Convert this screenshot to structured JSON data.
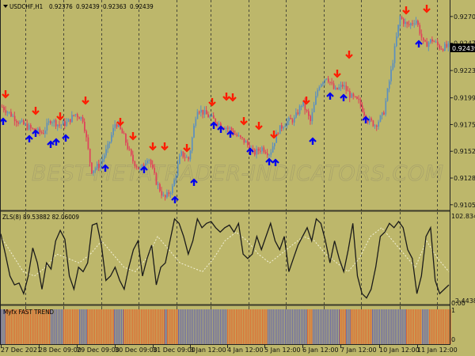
{
  "window": {
    "symbol_title": "USDCHF,H1",
    "ohlc": [
      "0.92376",
      "0.92439",
      "0.92363",
      "0.92439"
    ],
    "current_price_label": "0.92439",
    "watermark": "BEST-METATRADER-INDICATORS.COM"
  },
  "colors": {
    "background": "#bdb76b",
    "grid": "#4a4a3a",
    "bull_candle": "#5b8fbf",
    "bear_candle": "#e0405a",
    "up_arrow": "#0000ee",
    "down_arrow": "#ff1a00",
    "zls_main": "#1a1a1a",
    "zls_signal": "#f0f0d8",
    "trend_up": "#e06a30",
    "trend_down": "#6a6aaa",
    "price_tag_bg": "#000000",
    "price_tag_fg": "#ffffff"
  },
  "panels": {
    "main": {
      "y_ticks": [
        "0.92705",
        "0.92470",
        "0.92230",
        "0.91990",
        "0.91755",
        "0.91520",
        "0.91285",
        "0.91050"
      ]
    },
    "zls": {
      "title": "ZLS(8) 89.53882 82.06009",
      "y_max": "102.83414",
      "y_min": "-2.4438"
    },
    "trend": {
      "title": "Myfx FAST TREND",
      "y_top": "1",
      "y_bottom": "0",
      "y_overlap": "0.00"
    }
  },
  "x_axis": {
    "labels": [
      "27 Dec 2021",
      "28 Dec 09:00",
      "29 Dec 09:00",
      "30 Dec 09:00",
      "31 Dec 09:00",
      "3 Jan 12:00",
      "4 Jan 12:00",
      "5 Jan 12:00",
      "6 Jan 12:00",
      "7 Jan 12:00",
      "10 Jan 12:00",
      "11 Jan 12:00"
    ]
  },
  "chart_data": [
    {
      "type": "candlestick",
      "title": "USDCHF,H1 0.92376 0.92439 0.92363 0.92439",
      "ylim": [
        0.91,
        0.9285
      ],
      "y_ticks": [
        0.92705,
        0.9247,
        0.9223,
        0.9199,
        0.91755,
        0.9152,
        0.91285,
        0.9105
      ],
      "x_labels": [
        "27 Dec 2021",
        "28 Dec 09:00",
        "29 Dec 09:00",
        "30 Dec 09:00",
        "31 Dec 09:00",
        "3 Jan 12:00",
        "4 Jan 12:00",
        "5 Jan 12:00",
        "6 Jan 12:00",
        "7 Jan 12:00",
        "10 Jan 12:00",
        "11 Jan 12:00"
      ],
      "close_path_approx": [
        0.9191,
        0.9185,
        0.9178,
        0.9174,
        0.917,
        0.9168,
        0.918,
        0.9175,
        0.9177,
        0.9185,
        0.918,
        0.9135,
        0.914,
        0.9155,
        0.9178,
        0.9165,
        0.9145,
        0.9135,
        0.9148,
        0.9125,
        0.911,
        0.912,
        0.915,
        0.9145,
        0.919,
        0.9185,
        0.918,
        0.9175,
        0.9172,
        0.9165,
        0.916,
        0.915,
        0.9155,
        0.915,
        0.917,
        0.9178,
        0.918,
        0.9195,
        0.9178,
        0.921,
        0.9218,
        0.9205,
        0.921,
        0.92,
        0.9195,
        0.918,
        0.9175,
        0.9185,
        0.9225,
        0.927,
        0.9262,
        0.9268,
        0.9245,
        0.925,
        0.9243,
        0.9244
      ],
      "down_arrows_count": 19,
      "up_arrows_count": 20,
      "current_price": 0.92439
    },
    {
      "type": "line",
      "title": "ZLS(8) 89.53882 82.06009",
      "ylim": [
        -2.4438,
        102.83414
      ],
      "series": [
        {
          "name": "ZLS main",
          "values": [
            78,
            55,
            30,
            20,
            22,
            10,
            30,
            62,
            45,
            15,
            45,
            38,
            70,
            82,
            72,
            30,
            15,
            40,
            35,
            45,
            88,
            90,
            65,
            25,
            30,
            40,
            25,
            15,
            40,
            60,
            70,
            30,
            50,
            65,
            20,
            40,
            45,
            70,
            95,
            90,
            75,
            55,
            70,
            95,
            85,
            90,
            92,
            85,
            80,
            85,
            88,
            80,
            90,
            55,
            50,
            55,
            75,
            60,
            75,
            90,
            70,
            60,
            75,
            35,
            50,
            65,
            75,
            85,
            70,
            95,
            90,
            70,
            45,
            70,
            50,
            35,
            60,
            90,
            30,
            10,
            5,
            15,
            40,
            75,
            80,
            90,
            85,
            92,
            85,
            60,
            50,
            10,
            30,
            75,
            85,
            25,
            10,
            15,
            20
          ]
        },
        {
          "name": "ZLS signal",
          "values": [
            75,
            55,
            35,
            30,
            40,
            55,
            50,
            45,
            55,
            70,
            55,
            40,
            35,
            50,
            75,
            60,
            45,
            40,
            35,
            50,
            70,
            80,
            70,
            55,
            45,
            55,
            65,
            75,
            70,
            55,
            45,
            35,
            50,
            75,
            85,
            70,
            55,
            40,
            70,
            50,
            35
          ]
        }
      ]
    },
    {
      "type": "bar",
      "title": "Myfx FAST TREND",
      "ylim": [
        0,
        1
      ],
      "segments": [
        {
          "from_x": 0,
          "to_x": 6,
          "state": "down"
        },
        {
          "from_x": 6,
          "to_x": 63,
          "state": "up"
        },
        {
          "from_x": 63,
          "to_x": 79,
          "state": "down"
        },
        {
          "from_x": 79,
          "to_x": 99,
          "state": "up"
        },
        {
          "from_x": 99,
          "to_x": 109,
          "state": "down"
        },
        {
          "from_x": 109,
          "to_x": 143,
          "state": "up"
        },
        {
          "from_x": 143,
          "to_x": 155,
          "state": "down"
        },
        {
          "from_x": 155,
          "to_x": 207,
          "state": "up"
        },
        {
          "from_x": 207,
          "to_x": 210,
          "state": "down"
        },
        {
          "from_x": 210,
          "to_x": 224,
          "state": "up"
        },
        {
          "from_x": 224,
          "to_x": 286,
          "state": "down"
        },
        {
          "from_x": 286,
          "to_x": 337,
          "state": "up"
        },
        {
          "from_x": 337,
          "to_x": 387,
          "state": "down"
        },
        {
          "from_x": 387,
          "to_x": 394,
          "state": "up"
        },
        {
          "from_x": 394,
          "to_x": 428,
          "state": "down"
        },
        {
          "from_x": 428,
          "to_x": 436,
          "state": "up"
        },
        {
          "from_x": 436,
          "to_x": 442,
          "state": "down"
        },
        {
          "from_x": 442,
          "to_x": 469,
          "state": "up"
        },
        {
          "from_x": 469,
          "to_x": 512,
          "state": "down"
        },
        {
          "from_x": 512,
          "to_x": 532,
          "state": "up"
        },
        {
          "from_x": 532,
          "to_x": 541,
          "state": "down"
        },
        {
          "from_x": 541,
          "to_x": 568,
          "state": "up"
        }
      ]
    }
  ]
}
